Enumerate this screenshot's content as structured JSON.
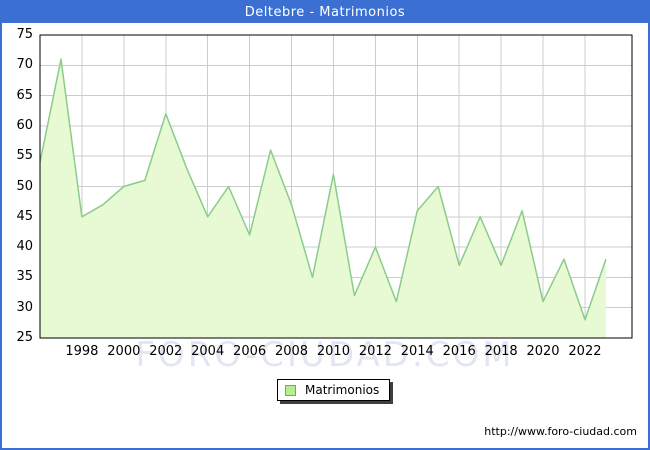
{
  "title": "Deltebre - Matrimonios",
  "watermark": "FORO-CIUDAD.COM",
  "source_url": "http://www.foro-ciudad.com",
  "legend_label": "Matrimonios",
  "colors": {
    "frame_blue": "#3b70d2",
    "title_text": "#ffffff",
    "area_fill": "#e7fad3",
    "line": "#8bcc8b",
    "legend_swatch_fill": "#b5ef8d",
    "legend_swatch_border": "#6fae4e",
    "grid": "#cccccc",
    "plot_border": "#000000",
    "watermark_color": "#e2e6f2"
  },
  "chart_data": {
    "type": "area",
    "title": "Deltebre - Matrimonios",
    "series_name": "Matrimonios",
    "x": [
      1996,
      1997,
      1998,
      1999,
      2000,
      2001,
      2002,
      2003,
      2004,
      2005,
      2006,
      2007,
      2008,
      2009,
      2010,
      2011,
      2012,
      2013,
      2014,
      2015,
      2016,
      2017,
      2018,
      2019,
      2020,
      2021,
      2022,
      2023
    ],
    "values": [
      54,
      71,
      45,
      47,
      50,
      51,
      62,
      53,
      45,
      50,
      42,
      56,
      47,
      35,
      52,
      32,
      40,
      31,
      46,
      50,
      37,
      45,
      37,
      46,
      31,
      38,
      28,
      38
    ],
    "ylim": [
      25,
      75
    ],
    "yticks": [
      25,
      30,
      35,
      40,
      45,
      50,
      55,
      60,
      65,
      70,
      75
    ],
    "xticks": [
      1998,
      2000,
      2002,
      2004,
      2006,
      2008,
      2010,
      2012,
      2014,
      2016,
      2018,
      2020,
      2022
    ],
    "xlabel": "",
    "ylabel": "",
    "grid": true,
    "legend_position": "bottom-center"
  }
}
